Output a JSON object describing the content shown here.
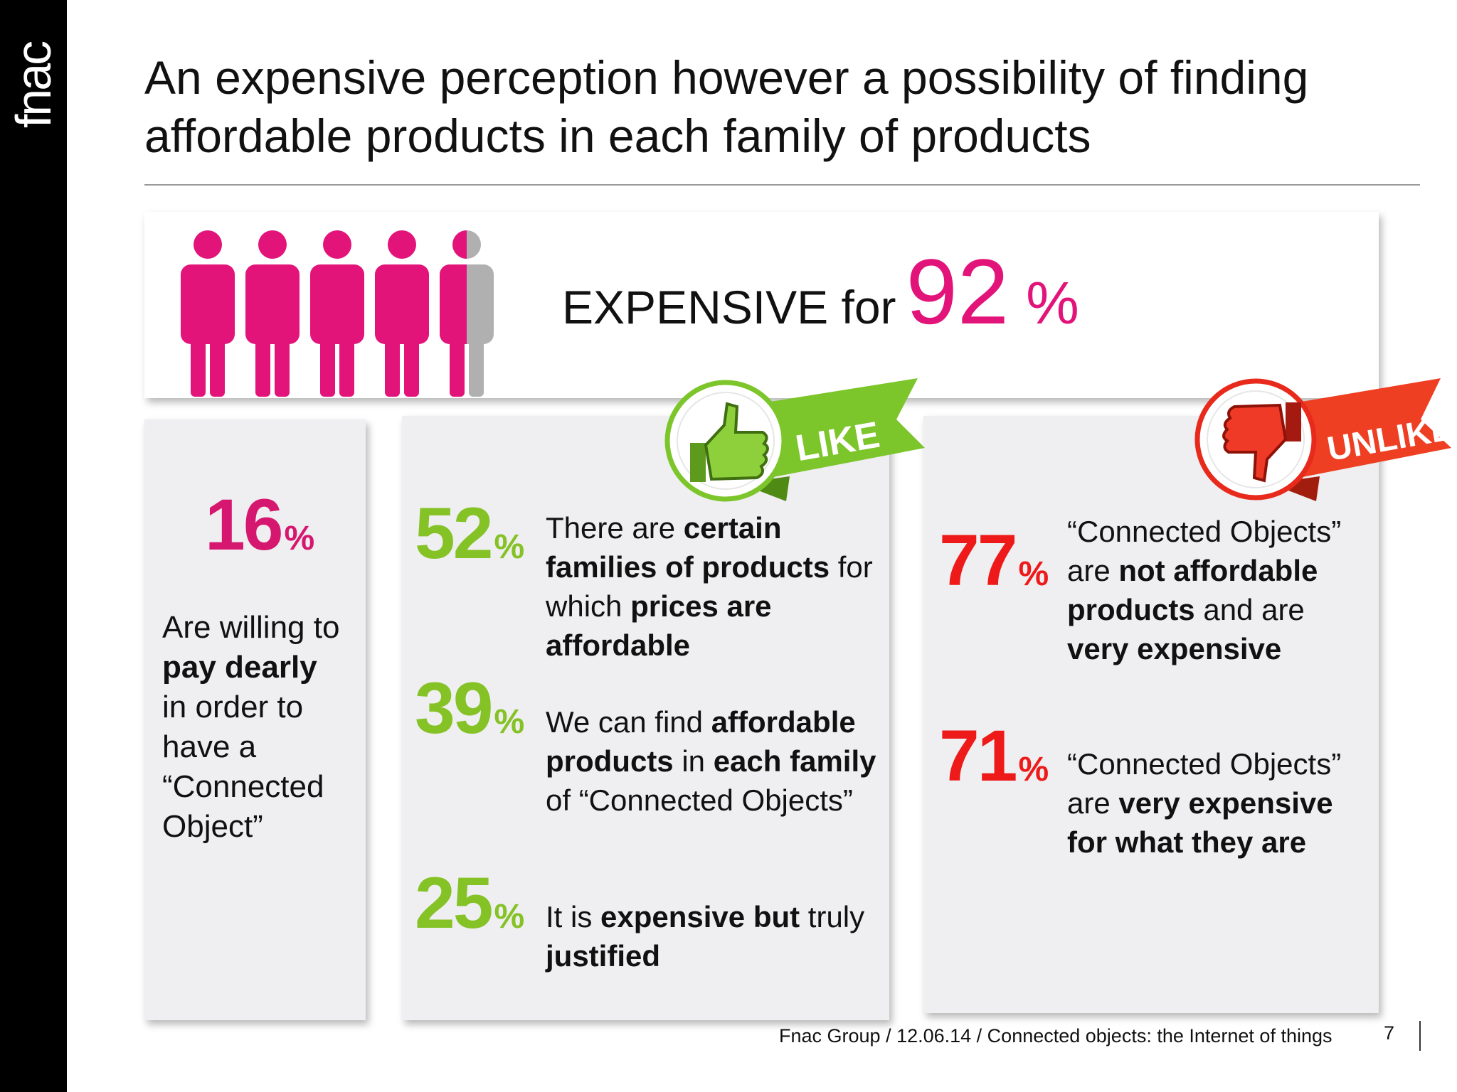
{
  "brand": {
    "logo_text": "fnac"
  },
  "title": "An expensive perception however a possibility of finding affordable products in each family of products",
  "colors": {
    "pink": "#e2147a",
    "green": "#84c225",
    "red": "#ee1a1a",
    "grey_person": "#b0b0b0"
  },
  "top_panel": {
    "people_icons": {
      "count": 5,
      "filled_fraction": 0.92,
      "icon": "person-icon"
    },
    "label": "EXPENSIVE for",
    "value": "92",
    "unit": "%"
  },
  "left_card": {
    "value": "16",
    "unit": "%",
    "text_1": "Are willing to",
    "text_bold": "pay dearly",
    "text_2": "in order to have a “Connected Object”"
  },
  "like_badge": {
    "label": "LIKE",
    "icon": "thumbs-up-icon"
  },
  "unlike_badge": {
    "label": "UNLIKE",
    "icon": "thumbs-down-icon"
  },
  "like_stats": [
    {
      "value": "52",
      "unit": "%",
      "parts": [
        {
          "t": "There are ",
          "b": false
        },
        {
          "t": "certain families of products",
          "b": true
        },
        {
          "t": " for which ",
          "b": false
        },
        {
          "t": "prices are affordable",
          "b": true
        }
      ]
    },
    {
      "value": "39",
      "unit": "%",
      "parts": [
        {
          "t": "We can find ",
          "b": false
        },
        {
          "t": "affordable products",
          "b": true
        },
        {
          "t": " in ",
          "b": false
        },
        {
          "t": "each family",
          "b": true
        },
        {
          "t": " of “Connected Objects”",
          "b": false
        }
      ]
    },
    {
      "value": "25",
      "unit": "%",
      "parts": [
        {
          "t": "It is ",
          "b": false
        },
        {
          "t": "expensive but",
          "b": true
        },
        {
          "t": " truly ",
          "b": false
        },
        {
          "t": "justified",
          "b": true
        }
      ]
    }
  ],
  "unlike_stats": [
    {
      "value": "77",
      "unit": "%",
      "parts": [
        {
          "t": "“Connected Objects” are ",
          "b": false
        },
        {
          "t": "not affordable products",
          "b": true
        },
        {
          "t": " and are ",
          "b": false
        },
        {
          "t": "very expensive",
          "b": true
        }
      ]
    },
    {
      "value": "71",
      "unit": "%",
      "parts": [
        {
          "t": "“Connected Objects” are ",
          "b": false
        },
        {
          "t": "very expensive for what they are",
          "b": true
        }
      ]
    }
  ],
  "footer": {
    "text": "Fnac Group / 12.06.14 / Connected objects: the Internet of things",
    "page": "7"
  }
}
